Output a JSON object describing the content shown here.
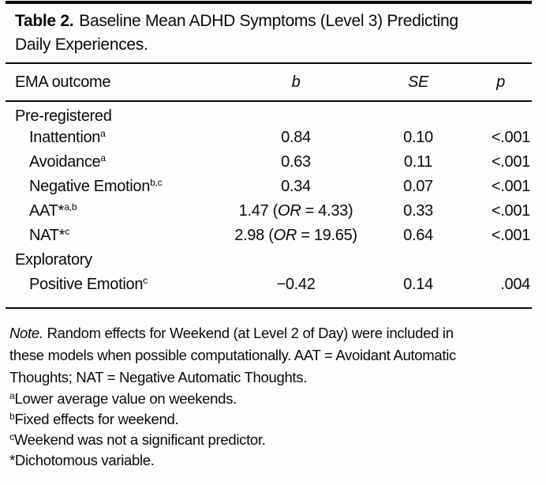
{
  "title": {
    "prefix": "Table 2.",
    "line1": "Baseline Mean ADHD Symptoms (Level 3) Predicting",
    "line2": "Daily Experiences."
  },
  "table": {
    "headers": {
      "outcome": "EMA outcome",
      "b": "b",
      "se": "SE",
      "p": "p"
    },
    "rows": [
      {
        "type": "section",
        "label": "Pre-registered"
      },
      {
        "type": "item",
        "label": "Inattention",
        "star": "",
        "sup": "a",
        "b_pre": "0.84",
        "or": "",
        "b_post": "",
        "se": "0.10",
        "p": "<.001"
      },
      {
        "type": "item",
        "label": "Avoidance",
        "star": "",
        "sup": "a",
        "b_pre": "0.63",
        "or": "",
        "b_post": "",
        "se": "0.11",
        "p": "<.001"
      },
      {
        "type": "item",
        "label": "Negative Emotion",
        "star": "",
        "sup": "b,c",
        "b_pre": "0.34",
        "or": "",
        "b_post": "",
        "se": "0.07",
        "p": "<.001"
      },
      {
        "type": "item",
        "label": "AAT",
        "star": "*",
        "sup": "a,b",
        "b_pre": "1.47 (",
        "or": "OR",
        "b_post": " = 4.33)",
        "se": "0.33",
        "p": "<.001"
      },
      {
        "type": "item",
        "label": "NAT",
        "star": "*",
        "sup": "c",
        "b_pre": "2.98 (",
        "or": "OR",
        "b_post": " = 19.65)",
        "se": "0.64",
        "p": "<.001"
      },
      {
        "type": "section",
        "label": "Exploratory"
      },
      {
        "type": "item",
        "label": "Positive Emotion",
        "star": "",
        "sup": "c",
        "b_pre": "−0.42",
        "or": "",
        "b_post": "",
        "se": "0.14",
        "p": ".004"
      }
    ]
  },
  "notes": {
    "note_label": "Note.",
    "note_lines": [
      "Random effects for Weekend (at Level 2 of Day) were included in",
      "these models when possible computationally. AAT = Avoidant Automatic",
      "Thoughts; NAT = Negative Automatic Thoughts."
    ],
    "footnotes": [
      {
        "sup": "a",
        "text": "Lower average value on weekends."
      },
      {
        "sup": "b",
        "text": "Fixed effects for weekend."
      },
      {
        "sup": "c",
        "text": "Weekend was not a significant predictor."
      },
      {
        "sup": "",
        "text": "*Dichotomous variable."
      }
    ]
  }
}
